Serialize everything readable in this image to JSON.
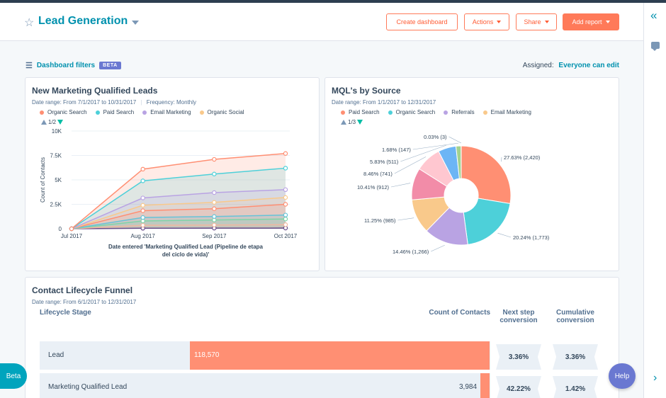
{
  "header": {
    "title": "Lead Generation",
    "buttons": {
      "create_dashboard": "Create dashboard",
      "actions": "Actions",
      "share": "Share",
      "add_report": "Add report"
    }
  },
  "filters": {
    "label": "Dashboard filters",
    "badge": "BETA",
    "assigned_label": "Assigned:",
    "assigned_value": "Everyone can edit"
  },
  "card1": {
    "title": "New Marketing Qualified Leads",
    "date_range": "Date range: From 7/1/2017 to 10/31/2017",
    "frequency": "Frequency: Monthly",
    "legend": [
      {
        "label": "Organic Search",
        "color": "#ff8f73"
      },
      {
        "label": "Paid Search",
        "color": "#4dd0d9"
      },
      {
        "label": "Email Marketing",
        "color": "#b9a3e3"
      },
      {
        "label": "Organic Social",
        "color": "#f9c98b"
      }
    ],
    "pager": "1/2"
  },
  "card2": {
    "title": "MQL's by Source",
    "date_range": "Date range: From 1/1/2017 to 12/31/2017",
    "legend": [
      {
        "label": "Paid Search",
        "color": "#ff8f73"
      },
      {
        "label": "Organic Search",
        "color": "#4dd0d9"
      },
      {
        "label": "Referrals",
        "color": "#b9a3e3"
      },
      {
        "label": "Email Marketing",
        "color": "#f9c98b"
      }
    ],
    "pager": "1/3"
  },
  "funnel": {
    "title": "Contact Lifecycle Funnel",
    "date_range": "Date range: From 6/1/2017 to 12/31/2017",
    "col_stage": "Lifecycle Stage",
    "col_count": "Count of Contacts",
    "col_next_1": "Next step",
    "col_next_2": "conversion",
    "col_cum_1": "Cumulative",
    "col_cum_2": "conversion",
    "rows": [
      {
        "stage": "Lead",
        "count": "118,570",
        "next": "3.36%",
        "cumulative": "3.36%"
      },
      {
        "stage": "Marketing Qualified Lead",
        "count": "3,984",
        "next": "42.22%",
        "cumulative": "1.42%"
      }
    ]
  },
  "floating": {
    "beta": "Beta",
    "help": "Help"
  },
  "chart_data": [
    {
      "type": "area",
      "title": "New Marketing Qualified Leads",
      "xlabel": "Date entered 'Marketing Qualified Lead (Pipeline de etapa del ciclo de vida)'",
      "ylabel": "Count of Contacts",
      "categories": [
        "Jul 2017",
        "Aug 2017",
        "Sep 2017",
        "Oct 2017"
      ],
      "y_ticks": [
        "0",
        "2.5K",
        "5K",
        "7.5K",
        "10K"
      ],
      "ylim": [
        0,
        10000
      ],
      "series": [
        {
          "color": "#6a4e8a",
          "values": [
            0,
            50,
            60,
            70
          ]
        },
        {
          "color": "#f0b8a0",
          "values": [
            0,
            350,
            380,
            420
          ]
        },
        {
          "color": "#7fd4a8",
          "values": [
            0,
            800,
            900,
            1000
          ]
        },
        {
          "color": "#66c3d8",
          "values": [
            0,
            1150,
            1250,
            1400
          ]
        },
        {
          "color": "#ff8f73",
          "values": [
            0,
            1850,
            2050,
            2500
          ]
        },
        {
          "color": "#f9c98b",
          "values": [
            0,
            2400,
            2700,
            3200
          ]
        },
        {
          "color": "#b9a3e3",
          "values": [
            0,
            3150,
            3700,
            4000
          ]
        },
        {
          "color": "#4dd0d9",
          "values": [
            0,
            4900,
            5600,
            6200
          ]
        },
        {
          "color": "#ff8f73",
          "values": [
            0,
            6100,
            7100,
            7700
          ]
        }
      ]
    },
    {
      "type": "pie",
      "title": "MQL's by Source",
      "slices": [
        {
          "value": 2420,
          "label": "27.63% (2,420)",
          "color": "#ff8f73"
        },
        {
          "value": 1773,
          "label": "20.24% (1,773)",
          "color": "#4dd0d9"
        },
        {
          "value": 1266,
          "label": "14.46% (1,266)",
          "color": "#b9a3e3"
        },
        {
          "value": 985,
          "label": "11.25% (985)",
          "color": "#f9c98b"
        },
        {
          "value": 912,
          "label": "10.41% (912)",
          "color": "#f28ca8"
        },
        {
          "value": 741,
          "label": "8.46% (741)",
          "color": "#ffc7d0"
        },
        {
          "value": 511,
          "label": "5.83% (511)",
          "color": "#6cb5f5"
        },
        {
          "value": 147,
          "label": "1.68% (147)",
          "color": "#a2d28f"
        },
        {
          "value": 3,
          "label": "0.03% (3)",
          "color": "#c96a4a"
        }
      ]
    }
  ]
}
